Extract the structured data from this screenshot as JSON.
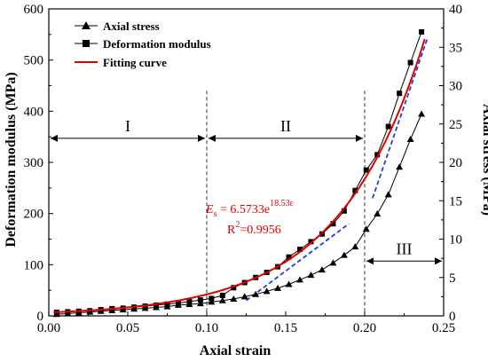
{
  "chart_data": {
    "type": "line",
    "title": "",
    "xlabel": "Axial strain",
    "ylabel_left": "Deformation modulus (MPa)",
    "ylabel_right": "Axial stress (MPa)",
    "xlim": [
      0.0,
      0.25
    ],
    "ylim_left": [
      0,
      600
    ],
    "ylim_right": [
      0,
      40
    ],
    "x_ticks": [
      "0.00",
      "0.05",
      "0.10",
      "0.15",
      "0.20",
      "0.25"
    ],
    "y_left_ticks": [
      "0",
      "100",
      "200",
      "300",
      "400",
      "500",
      "600"
    ],
    "y_right_ticks": [
      "0",
      "5",
      "10",
      "15",
      "20",
      "25",
      "30",
      "35",
      "40"
    ],
    "legend_position": "top-left",
    "grid": false,
    "legend": [
      {
        "label": "Axial stress",
        "marker": "triangle",
        "color": "#000000"
      },
      {
        "label": "Deformation modulus",
        "marker": "square",
        "color": "#000000"
      },
      {
        "label": "Fitting curve",
        "marker": "none",
        "color": "#e00000"
      }
    ],
    "series": [
      {
        "name": "Axial stress",
        "axis": "right",
        "marker": "triangle",
        "color": "#000000",
        "x": [
          0.005,
          0.012,
          0.019,
          0.026,
          0.033,
          0.04,
          0.047,
          0.054,
          0.061,
          0.068,
          0.075,
          0.082,
          0.089,
          0.096,
          0.103,
          0.11,
          0.117,
          0.124,
          0.131,
          0.138,
          0.145,
          0.152,
          0.159,
          0.166,
          0.173,
          0.18,
          0.187,
          0.194,
          0.201,
          0.208,
          0.215,
          0.222,
          0.229,
          0.236
        ],
        "values": [
          0.2,
          0.3,
          0.4,
          0.5,
          0.6,
          0.7,
          0.8,
          0.9,
          1.0,
          1.1,
          1.2,
          1.4,
          1.5,
          1.6,
          1.8,
          2.0,
          2.2,
          2.5,
          2.8,
          3.2,
          3.6,
          4.1,
          4.7,
          5.3,
          6.0,
          6.9,
          7.9,
          9.0,
          11.3,
          13.3,
          15.8,
          19.4,
          23.0,
          26.3
        ]
      },
      {
        "name": "Deformation modulus",
        "axis": "left",
        "marker": "square",
        "color": "#000000",
        "x": [
          0.005,
          0.012,
          0.019,
          0.026,
          0.033,
          0.04,
          0.047,
          0.054,
          0.061,
          0.068,
          0.075,
          0.082,
          0.089,
          0.096,
          0.103,
          0.11,
          0.117,
          0.124,
          0.131,
          0.138,
          0.145,
          0.152,
          0.159,
          0.166,
          0.173,
          0.18,
          0.187,
          0.194,
          0.201,
          0.208,
          0.215,
          0.222,
          0.229,
          0.236
        ],
        "values": [
          7,
          8,
          9,
          10,
          12,
          14,
          15,
          17,
          19,
          21,
          23,
          25,
          28,
          31,
          34,
          40,
          55,
          65,
          75,
          85,
          96,
          115,
          130,
          145,
          160,
          180,
          205,
          245,
          285,
          315,
          370,
          435,
          495,
          555
        ]
      }
    ],
    "fit": {
      "label": "Fitting curve",
      "equation_lhs": "E",
      "equation_sub": "s",
      "equation_rhs": " = 6.5733e",
      "equation_exp": "18.53ε",
      "r2_prefix": "R",
      "r2_exp": "2",
      "r2_value": "=0.9956",
      "coef_a": 6.5733,
      "coef_b": 18.53,
      "color": "#e00000"
    },
    "tangent_lines": [
      {
        "x": [
          0.125,
          0.19
        ],
        "y_left": [
          30,
          180
        ],
        "color": "#1f3fd8"
      },
      {
        "x": [
          0.205,
          0.24
        ],
        "y_left": [
          230,
          545
        ],
        "color": "#1f3fd8"
      }
    ],
    "stage_dividers": [
      0.1,
      0.2
    ],
    "regions": [
      {
        "label": "I",
        "x_from": 0.0,
        "x_to": 0.1,
        "y_left": 347
      },
      {
        "label": "II",
        "x_from": 0.1,
        "x_to": 0.2,
        "y_left": 347
      },
      {
        "label": "III",
        "x_from": 0.2,
        "x_to": 0.25,
        "y_left": 107
      }
    ]
  }
}
